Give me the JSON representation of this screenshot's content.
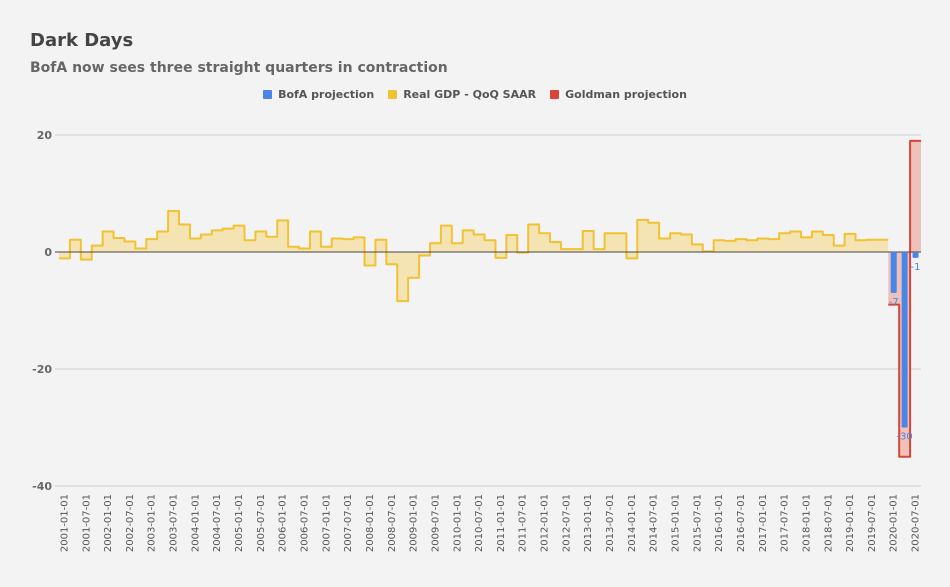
{
  "chart_data": {
    "type": "area",
    "title": "Dark Days",
    "subtitle": "BofA now sees three straight quarters in contraction",
    "xlabel": "",
    "ylabel": "",
    "ylim": [
      -40,
      20
    ],
    "yticks": [
      "20",
      "0",
      "-20",
      "-40"
    ],
    "ytick_values": [
      20,
      0,
      -20,
      -40
    ],
    "grid": true,
    "legend_position": "top-center",
    "quarters_start": "2001-01-01",
    "xtick_labels": [
      "2001-01-01",
      "2001-07-01",
      "2002-01-01",
      "2002-07-01",
      "2003-01-01",
      "2003-07-01",
      "2004-01-01",
      "2004-07-01",
      "2005-01-01",
      "2005-07-01",
      "2006-01-01",
      "2006-07-01",
      "2007-01-01",
      "2007-07-01",
      "2008-01-01",
      "2008-07-01",
      "2009-01-01",
      "2009-07-01",
      "2010-01-01",
      "2010-07-01",
      "2011-01-01",
      "2011-07-01",
      "2012-01-01",
      "2012-07-01",
      "2013-01-01",
      "2013-07-01",
      "2014-01-01",
      "2014-07-01",
      "2015-01-01",
      "2015-07-01",
      "2016-01-01",
      "2016-07-01",
      "2017-01-01",
      "2017-07-01",
      "2018-01-01",
      "2018-07-01",
      "2019-01-01",
      "2019-07-01",
      "2020-01-01",
      "2020-07-01"
    ],
    "series": [
      {
        "name": "BofA projection",
        "color": "#4a86e8",
        "type": "bar",
        "start_index": 76,
        "values": [
          -7,
          -30,
          -1
        ],
        "labels": [
          "-7",
          "-30",
          "-1"
        ]
      },
      {
        "name": "Real GDP - QoQ SAAR",
        "color": "#f1c232",
        "fill": "#f4e4b4",
        "type": "step-area",
        "start_index": 0,
        "values": [
          -1.1,
          2.1,
          -1.3,
          1.1,
          3.5,
          2.4,
          1.8,
          0.6,
          2.2,
          3.5,
          7.0,
          4.7,
          2.3,
          3.0,
          3.7,
          4.0,
          4.5,
          2.0,
          3.5,
          2.6,
          5.4,
          0.9,
          0.6,
          3.5,
          0.9,
          2.3,
          2.2,
          2.5,
          -2.3,
          2.1,
          -2.1,
          -8.4,
          -4.4,
          -0.6,
          1.5,
          4.5,
          1.5,
          3.7,
          3.0,
          2.0,
          -1.0,
          2.9,
          -0.1,
          4.7,
          3.2,
          1.7,
          0.5,
          0.5,
          3.6,
          0.5,
          3.2,
          3.2,
          -1.1,
          5.5,
          5.0,
          2.3,
          3.2,
          3.0,
          1.3,
          0.1,
          2.0,
          1.9,
          2.2,
          2.0,
          2.3,
          2.2,
          3.2,
          3.5,
          2.5,
          3.5,
          2.9,
          1.1,
          3.1,
          2.0,
          2.1,
          2.1
        ]
      },
      {
        "name": "Goldman projection",
        "color": "#db4437",
        "fill": "#efc1bb",
        "type": "step-area",
        "start_index": 76,
        "values": [
          -9,
          -35,
          19
        ]
      }
    ]
  }
}
